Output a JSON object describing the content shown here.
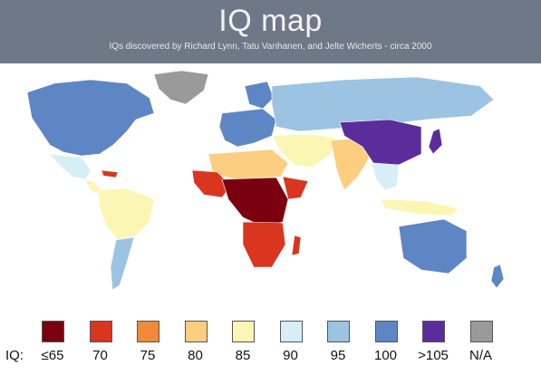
{
  "header": {
    "title": "IQ map",
    "subtitle": "IQs discovered by Richard Lynn, Tatu Vanhanen, and Jelte Wicherts - circa 2000"
  },
  "legend": {
    "prefix": "IQ:",
    "items": [
      {
        "label": "≤65",
        "color": "#7a0010"
      },
      {
        "label": "70",
        "color": "#d9351f"
      },
      {
        "label": "75",
        "color": "#f08a3a"
      },
      {
        "label": "80",
        "color": "#fbcf7f"
      },
      {
        "label": "85",
        "color": "#fbf6b3"
      },
      {
        "label": "90",
        "color": "#d6eef5"
      },
      {
        "label": "95",
        "color": "#9cc3e2"
      },
      {
        "label": "100",
        "color": "#5f86c4"
      },
      {
        "label": ">105",
        "color": "#5b2d9a"
      },
      {
        "label": "N/A",
        "color": "#9a9a9a"
      }
    ]
  },
  "regions": [
    {
      "name": "north-america",
      "color": "#5f86c4"
    },
    {
      "name": "greenland",
      "color": "#9a9a9a"
    },
    {
      "name": "mexico",
      "color": "#d6eef5"
    },
    {
      "name": "central-america",
      "color": "#fbf6b3"
    },
    {
      "name": "caribbean",
      "color": "#d9351f"
    },
    {
      "name": "south-america-north",
      "color": "#fbf6b3"
    },
    {
      "name": "south-america-south",
      "color": "#9cc3e2"
    },
    {
      "name": "europe",
      "color": "#5f86c4"
    },
    {
      "name": "scandinavia",
      "color": "#5f86c4"
    },
    {
      "name": "russia",
      "color": "#9cc3e2"
    },
    {
      "name": "middle-east",
      "color": "#fbf6b3"
    },
    {
      "name": "north-africa",
      "color": "#fbcf7f"
    },
    {
      "name": "west-africa",
      "color": "#d9351f"
    },
    {
      "name": "central-africa",
      "color": "#7a0010"
    },
    {
      "name": "southern-africa",
      "color": "#d9351f"
    },
    {
      "name": "horn-africa",
      "color": "#d9351f"
    },
    {
      "name": "south-asia",
      "color": "#fbcf7f"
    },
    {
      "name": "china",
      "color": "#5b2d9a"
    },
    {
      "name": "japan",
      "color": "#5b2d9a"
    },
    {
      "name": "southeast-asia",
      "color": "#d6eef5"
    },
    {
      "name": "indonesia",
      "color": "#fbf6b3"
    },
    {
      "name": "australia",
      "color": "#5f86c4"
    },
    {
      "name": "new-zealand",
      "color": "#5f86c4"
    },
    {
      "name": "madagascar",
      "color": "#d9351f"
    }
  ]
}
